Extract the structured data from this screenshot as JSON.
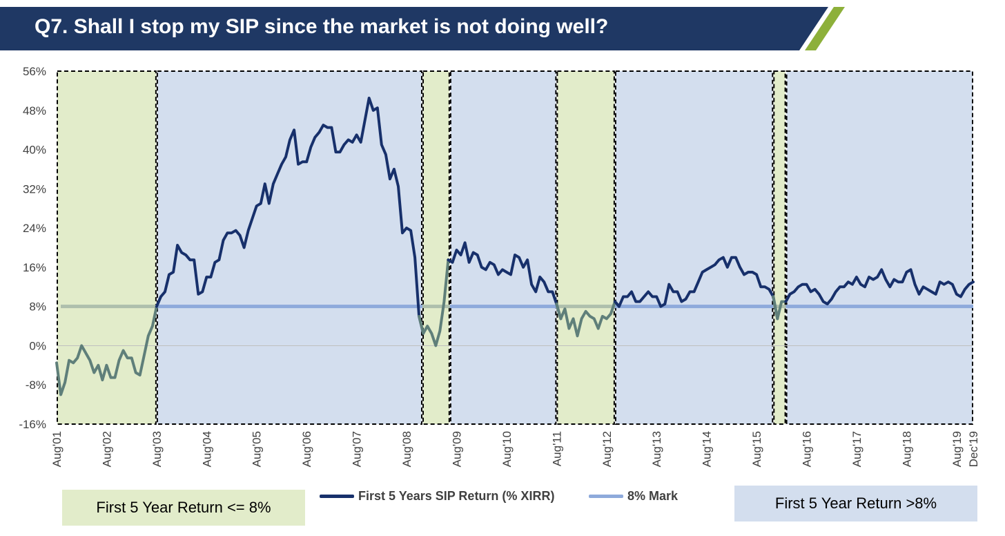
{
  "header": {
    "title": "Q7. Shall I stop my SIP since the market is not doing well?"
  },
  "colors": {
    "banner": "#1f3864",
    "accent": "#8db03a",
    "sip_line": "#17306b",
    "sip_line_low": "#5f7f7a",
    "mark_line": "#8eaadb",
    "mark_line_low": "#aebfac",
    "zone_low": "#e2ecca",
    "zone_high": "#d3deee"
  },
  "legend": {
    "low_zone": "First 5 Year Return <= 8%",
    "high_zone": "First 5 Year Return >8%",
    "sip_series": "First 5 Years SIP Return (% XIRR)",
    "mark_series": "8% Mark"
  },
  "chart_data": {
    "type": "line",
    "ylim": [
      -16,
      56
    ],
    "yticks": [
      56,
      48,
      40,
      32,
      24,
      16,
      8,
      0,
      -8,
      -16
    ],
    "ytick_labels": [
      "56%",
      "48%",
      "40%",
      "32%",
      "24%",
      "16%",
      "8%",
      "0%",
      "-8%",
      "-16%"
    ],
    "xlim": [
      2001.583,
      2019.917
    ],
    "xticks": [
      {
        "t": 2001.583,
        "label": "Aug'01"
      },
      {
        "t": 2002.583,
        "label": "Aug'02"
      },
      {
        "t": 2003.583,
        "label": "Aug'03"
      },
      {
        "t": 2004.583,
        "label": "Aug'04"
      },
      {
        "t": 2005.583,
        "label": "Aug'05"
      },
      {
        "t": 2006.583,
        "label": "Aug'06"
      },
      {
        "t": 2007.583,
        "label": "Aug'07"
      },
      {
        "t": 2008.583,
        "label": "Aug'08"
      },
      {
        "t": 2009.583,
        "label": "Aug'09"
      },
      {
        "t": 2010.583,
        "label": "Aug'10"
      },
      {
        "t": 2011.583,
        "label": "Aug'11"
      },
      {
        "t": 2012.583,
        "label": "Aug'12"
      },
      {
        "t": 2013.583,
        "label": "Aug'13"
      },
      {
        "t": 2014.583,
        "label": "Aug'14"
      },
      {
        "t": 2015.583,
        "label": "Aug'15"
      },
      {
        "t": 2016.583,
        "label": "Aug'16"
      },
      {
        "t": 2017.583,
        "label": "Aug'17"
      },
      {
        "t": 2018.583,
        "label": "Aug'18"
      },
      {
        "t": 2019.583,
        "label": "Aug'19"
      },
      {
        "t": 2019.917,
        "label": "Dec'19"
      }
    ],
    "zones": [
      {
        "kind": "low",
        "start": 2001.583,
        "end": 2003.583
      },
      {
        "kind": "high",
        "start": 2003.583,
        "end": 2008.9
      },
      {
        "kind": "low",
        "start": 2008.9,
        "end": 2009.45
      },
      {
        "kind": "high",
        "start": 2009.45,
        "end": 2011.583
      },
      {
        "kind": "low",
        "start": 2011.583,
        "end": 2012.75
      },
      {
        "kind": "high",
        "start": 2012.75,
        "end": 2015.917
      },
      {
        "kind": "low",
        "start": 2015.917,
        "end": 2016.17
      },
      {
        "kind": "high",
        "start": 2016.17,
        "end": 2019.917
      }
    ],
    "series": [
      {
        "name": "First 5 Years SIP Return (% XIRR)",
        "points": [
          [
            2001.583,
            -3.5
          ],
          [
            2001.667,
            -10
          ],
          [
            2001.75,
            -7.5
          ],
          [
            2001.833,
            -3
          ],
          [
            2001.917,
            -3.5
          ],
          [
            2002.0,
            -2.5
          ],
          [
            2002.083,
            0
          ],
          [
            2002.167,
            -1.5
          ],
          [
            2002.25,
            -3
          ],
          [
            2002.333,
            -5.5
          ],
          [
            2002.417,
            -4
          ],
          [
            2002.5,
            -7
          ],
          [
            2002.583,
            -4
          ],
          [
            2002.667,
            -6.5
          ],
          [
            2002.75,
            -6.5
          ],
          [
            2002.833,
            -3
          ],
          [
            2002.917,
            -1
          ],
          [
            2003.0,
            -2.5
          ],
          [
            2003.083,
            -2.5
          ],
          [
            2003.167,
            -5.5
          ],
          [
            2003.25,
            -6
          ],
          [
            2003.333,
            -2
          ],
          [
            2003.417,
            2
          ],
          [
            2003.5,
            4
          ],
          [
            2003.583,
            8
          ],
          [
            2003.667,
            10
          ],
          [
            2003.75,
            11
          ],
          [
            2003.833,
            14.5
          ],
          [
            2003.917,
            15
          ],
          [
            2004.0,
            20.5
          ],
          [
            2004.083,
            19
          ],
          [
            2004.167,
            18.5
          ],
          [
            2004.25,
            17.5
          ],
          [
            2004.333,
            17.5
          ],
          [
            2004.417,
            10.5
          ],
          [
            2004.5,
            11
          ],
          [
            2004.583,
            14
          ],
          [
            2004.667,
            14
          ],
          [
            2004.75,
            17
          ],
          [
            2004.833,
            17.5
          ],
          [
            2004.917,
            21.5
          ],
          [
            2005.0,
            23
          ],
          [
            2005.083,
            23
          ],
          [
            2005.167,
            23.5
          ],
          [
            2005.25,
            22.5
          ],
          [
            2005.333,
            20
          ],
          [
            2005.417,
            23.5
          ],
          [
            2005.5,
            26
          ],
          [
            2005.583,
            28.5
          ],
          [
            2005.667,
            29
          ],
          [
            2005.75,
            33
          ],
          [
            2005.833,
            29
          ],
          [
            2005.917,
            33
          ],
          [
            2006.0,
            35
          ],
          [
            2006.083,
            37
          ],
          [
            2006.167,
            38.5
          ],
          [
            2006.25,
            42
          ],
          [
            2006.333,
            44
          ],
          [
            2006.417,
            37
          ],
          [
            2006.5,
            37.5
          ],
          [
            2006.583,
            37.5
          ],
          [
            2006.667,
            40.5
          ],
          [
            2006.75,
            42.5
          ],
          [
            2006.833,
            43.5
          ],
          [
            2006.917,
            45
          ],
          [
            2007.0,
            44.5
          ],
          [
            2007.083,
            44.5
          ],
          [
            2007.167,
            39.5
          ],
          [
            2007.25,
            39.5
          ],
          [
            2007.333,
            41
          ],
          [
            2007.417,
            42
          ],
          [
            2007.5,
            41.5
          ],
          [
            2007.583,
            43
          ],
          [
            2007.667,
            41.5
          ],
          [
            2007.75,
            46
          ],
          [
            2007.833,
            50.5
          ],
          [
            2007.917,
            48
          ],
          [
            2008.0,
            48.5
          ],
          [
            2008.083,
            41
          ],
          [
            2008.167,
            39
          ],
          [
            2008.25,
            34
          ],
          [
            2008.333,
            36
          ],
          [
            2008.417,
            32.5
          ],
          [
            2008.5,
            23
          ],
          [
            2008.583,
            24
          ],
          [
            2008.667,
            23.5
          ],
          [
            2008.75,
            18
          ],
          [
            2008.833,
            6
          ],
          [
            2008.917,
            2.5
          ],
          [
            2009.0,
            4
          ],
          [
            2009.083,
            2.5
          ],
          [
            2009.167,
            0
          ],
          [
            2009.25,
            3
          ],
          [
            2009.333,
            9
          ],
          [
            2009.417,
            17.5
          ],
          [
            2009.5,
            17
          ],
          [
            2009.583,
            19.5
          ],
          [
            2009.667,
            18.5
          ],
          [
            2009.75,
            21
          ],
          [
            2009.833,
            17
          ],
          [
            2009.917,
            19
          ],
          [
            2010.0,
            18.5
          ],
          [
            2010.083,
            16
          ],
          [
            2010.167,
            15.5
          ],
          [
            2010.25,
            17
          ],
          [
            2010.333,
            16.5
          ],
          [
            2010.417,
            14.5
          ],
          [
            2010.5,
            15.5
          ],
          [
            2010.583,
            15
          ],
          [
            2010.667,
            14.5
          ],
          [
            2010.75,
            18.5
          ],
          [
            2010.833,
            18
          ],
          [
            2010.917,
            16
          ],
          [
            2011.0,
            17.5
          ],
          [
            2011.083,
            12.5
          ],
          [
            2011.167,
            11
          ],
          [
            2011.25,
            14
          ],
          [
            2011.333,
            13
          ],
          [
            2011.417,
            11
          ],
          [
            2011.5,
            11
          ],
          [
            2011.583,
            8.5
          ],
          [
            2011.667,
            5.5
          ],
          [
            2011.75,
            7.5
          ],
          [
            2011.833,
            3.5
          ],
          [
            2011.917,
            5.5
          ],
          [
            2012.0,
            2
          ],
          [
            2012.083,
            5.5
          ],
          [
            2012.167,
            7
          ],
          [
            2012.25,
            6
          ],
          [
            2012.333,
            5.5
          ],
          [
            2012.417,
            3.5
          ],
          [
            2012.5,
            6
          ],
          [
            2012.583,
            5.5
          ],
          [
            2012.667,
            6.5
          ],
          [
            2012.75,
            9
          ],
          [
            2012.833,
            8
          ],
          [
            2012.917,
            10
          ],
          [
            2013.0,
            10
          ],
          [
            2013.083,
            11
          ],
          [
            2013.167,
            9
          ],
          [
            2013.25,
            9
          ],
          [
            2013.333,
            10
          ],
          [
            2013.417,
            11
          ],
          [
            2013.5,
            10
          ],
          [
            2013.583,
            10
          ],
          [
            2013.667,
            8
          ],
          [
            2013.75,
            8.5
          ],
          [
            2013.833,
            12.5
          ],
          [
            2013.917,
            11
          ],
          [
            2014.0,
            11
          ],
          [
            2014.083,
            9
          ],
          [
            2014.167,
            9.5
          ],
          [
            2014.25,
            11
          ],
          [
            2014.333,
            11
          ],
          [
            2014.417,
            13
          ],
          [
            2014.5,
            15
          ],
          [
            2014.583,
            15.5
          ],
          [
            2014.667,
            16
          ],
          [
            2014.75,
            16.5
          ],
          [
            2014.833,
            17.5
          ],
          [
            2014.917,
            18
          ],
          [
            2015.0,
            16
          ],
          [
            2015.083,
            18
          ],
          [
            2015.167,
            18
          ],
          [
            2015.25,
            16
          ],
          [
            2015.333,
            14.5
          ],
          [
            2015.417,
            15
          ],
          [
            2015.5,
            15
          ],
          [
            2015.583,
            14.5
          ],
          [
            2015.667,
            12
          ],
          [
            2015.75,
            12
          ],
          [
            2015.833,
            11.5
          ],
          [
            2015.917,
            10
          ],
          [
            2016.0,
            5.5
          ],
          [
            2016.083,
            9
          ],
          [
            2016.167,
            9
          ],
          [
            2016.25,
            10.5
          ],
          [
            2016.333,
            11
          ],
          [
            2016.417,
            12
          ],
          [
            2016.5,
            12.5
          ],
          [
            2016.583,
            12.5
          ],
          [
            2016.667,
            11
          ],
          [
            2016.75,
            11.5
          ],
          [
            2016.833,
            10.5
          ],
          [
            2016.917,
            9
          ],
          [
            2017.0,
            8.5
          ],
          [
            2017.083,
            9.5
          ],
          [
            2017.167,
            11
          ],
          [
            2017.25,
            12
          ],
          [
            2017.333,
            12
          ],
          [
            2017.417,
            13
          ],
          [
            2017.5,
            12.5
          ],
          [
            2017.583,
            14
          ],
          [
            2017.667,
            12.5
          ],
          [
            2017.75,
            12
          ],
          [
            2017.833,
            14
          ],
          [
            2017.917,
            13.5
          ],
          [
            2018.0,
            14
          ],
          [
            2018.083,
            15.5
          ],
          [
            2018.167,
            13.5
          ],
          [
            2018.25,
            12
          ],
          [
            2018.333,
            13.5
          ],
          [
            2018.417,
            13
          ],
          [
            2018.5,
            13
          ],
          [
            2018.583,
            15
          ],
          [
            2018.667,
            15.5
          ],
          [
            2018.75,
            12.5
          ],
          [
            2018.833,
            10.5
          ],
          [
            2018.917,
            12
          ],
          [
            2019.0,
            11.5
          ],
          [
            2019.083,
            11
          ],
          [
            2019.167,
            10.5
          ],
          [
            2019.25,
            13
          ],
          [
            2019.333,
            12.5
          ],
          [
            2019.417,
            13
          ],
          [
            2019.5,
            12.5
          ],
          [
            2019.583,
            10.5
          ],
          [
            2019.667,
            10
          ],
          [
            2019.75,
            11.5
          ],
          [
            2019.833,
            12.5
          ],
          [
            2019.917,
            13
          ]
        ]
      },
      {
        "name": "8% Mark",
        "value": 8
      }
    ]
  }
}
